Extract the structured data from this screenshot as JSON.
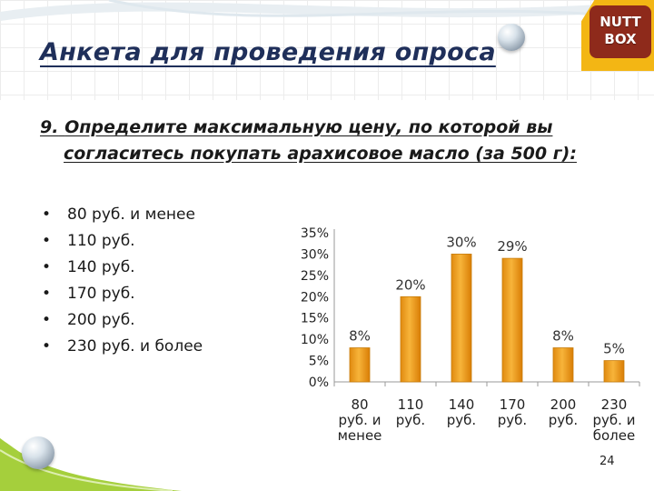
{
  "header": {
    "title": "Анкета для проведения опроса",
    "logo_line1": "NUTT",
    "logo_line2": "BOX"
  },
  "question": {
    "number": "9.",
    "line1": "Определите максимальную цену, по которой вы",
    "line2": "согласитесь покупать арахисовое масло (за 500 г):"
  },
  "options": [
    " 80 руб. и менее",
    "110 руб.",
    "140 руб.",
    "170 руб.",
    "200 руб.",
    "230 руб. и более"
  ],
  "bullet": "•",
  "page_number": "24",
  "colors": {
    "title": "#1f2f5a",
    "bar_fill": "#f0a21e",
    "bar_stroke": "#c77c0a",
    "logo_bg": "#8e2a1b",
    "logo_border_bg": "#f3b614"
  },
  "chart_data": {
    "type": "bar",
    "categories": [
      [
        "80",
        "руб. и",
        "менее"
      ],
      [
        "110",
        "руб."
      ],
      [
        "140",
        "руб."
      ],
      [
        "170",
        "руб."
      ],
      [
        "200",
        "руб."
      ],
      [
        "230",
        "руб. и",
        "более"
      ]
    ],
    "values": [
      8,
      20,
      30,
      29,
      8,
      5
    ],
    "data_labels": [
      "8%",
      "20%",
      "30%",
      "29%",
      "8%",
      "5%"
    ],
    "y_ticks": [
      "0%",
      "5%",
      "10%",
      "15%",
      "20%",
      "25%",
      "30%",
      "35%"
    ],
    "ylim": [
      0,
      35
    ],
    "title": "",
    "xlabel": "",
    "ylabel": "",
    "grid": false,
    "legend": false
  }
}
